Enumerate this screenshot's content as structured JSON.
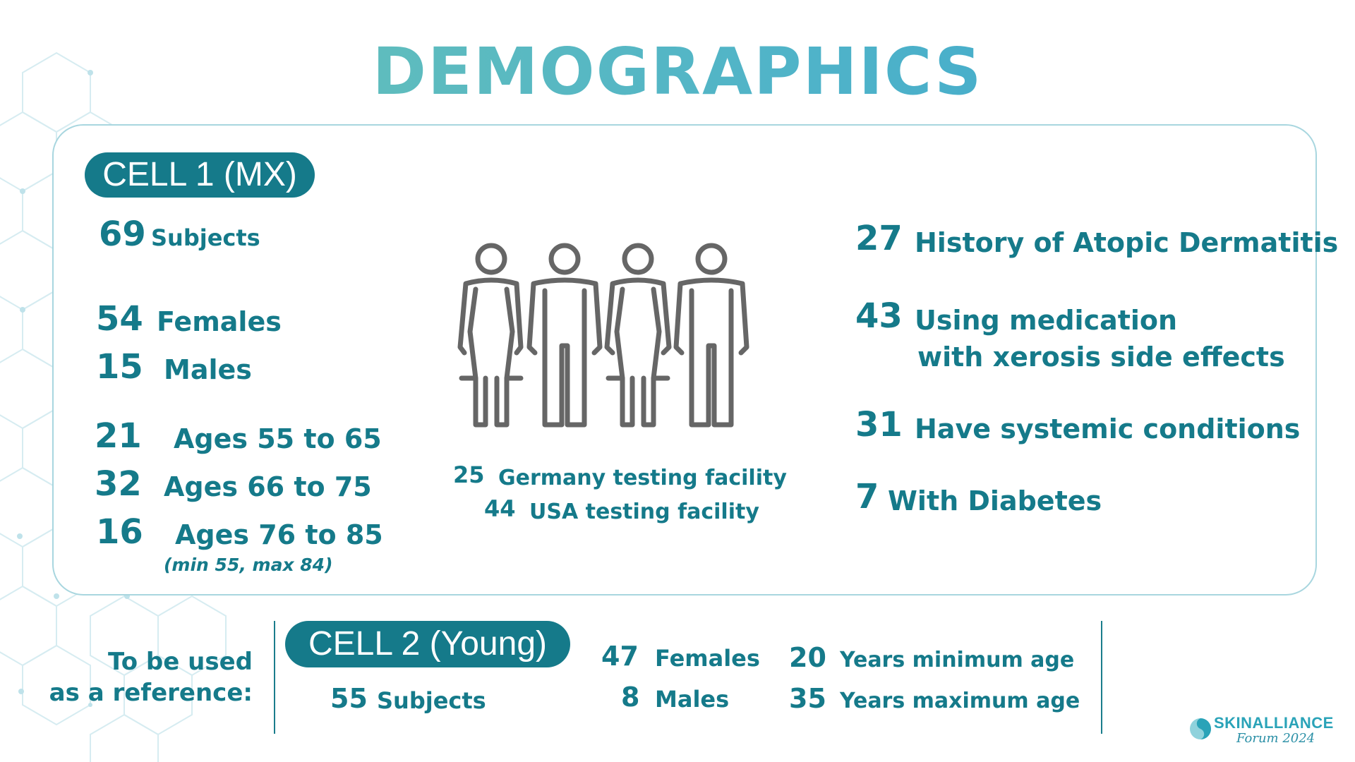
{
  "title": "DEMOGRAPHICS",
  "cell1": {
    "pill": "CELL 1 (MX)",
    "subjects": {
      "n": "69",
      "label": "Subjects"
    },
    "females": {
      "n": "54",
      "label": "Females"
    },
    "males": {
      "n": "15",
      "label": "Males"
    },
    "ages": [
      {
        "n": "21",
        "label": "Ages 55 to 65"
      },
      {
        "n": "32",
        "label": "Ages 66 to 75"
      },
      {
        "n": "16",
        "label": "Ages 76 to 85"
      }
    ],
    "age_note": "(min 55, max 84)",
    "facilities": [
      {
        "n": "25",
        "label": "Germany testing facility"
      },
      {
        "n": "44",
        "label": "USA testing facility"
      }
    ],
    "right": [
      {
        "n": "27",
        "label": "History of Atopic Dermatitis"
      },
      {
        "n": "43",
        "label": "Using medication",
        "label2": "with xerosis side effects"
      },
      {
        "n": "31",
        "label": "Have systemic conditions"
      },
      {
        "n": "7",
        "label": "With Diabetes"
      }
    ]
  },
  "reference": {
    "line1": "To be used",
    "line2": "as a reference:"
  },
  "cell2": {
    "pill": "CELL 2 (Young)",
    "subjects": {
      "n": "55",
      "label": "Subjects"
    },
    "females": {
      "n": "47",
      "label": "Females"
    },
    "males": {
      "n": "8",
      "label": "Males"
    },
    "min_age": {
      "n": "20",
      "label": "Years minimum age"
    },
    "max_age": {
      "n": "35",
      "label": "Years maximum age"
    }
  },
  "logo": {
    "name": "SKINALLIANCE",
    "sub": "Forum 2024",
    "icon": "skinalliance-logo-icon"
  },
  "icons": {
    "people": "people-group-icon",
    "background": "hexagon-pattern"
  },
  "colors": {
    "primary": "#157a8a",
    "title_start": "#6cc4b4",
    "title_end": "#3aa5cb",
    "border": "#a8d6df"
  }
}
